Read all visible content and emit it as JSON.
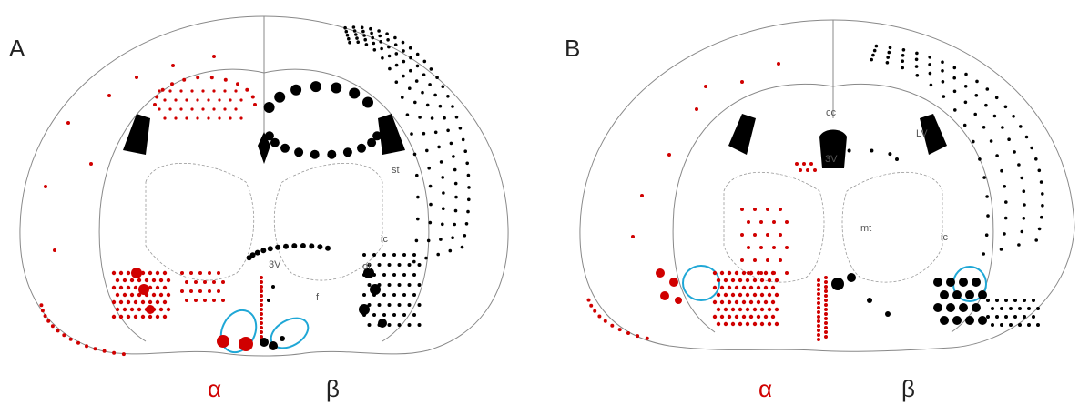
{
  "panels": [
    {
      "label": "A",
      "alpha": "α",
      "beta": "β",
      "regions": [
        "st",
        "3V",
        "ic",
        "ot",
        "f"
      ]
    },
    {
      "label": "B",
      "alpha": "α",
      "beta": "β",
      "regions": [
        "cc",
        "LV",
        "3V",
        "mt",
        "ic"
      ]
    }
  ]
}
